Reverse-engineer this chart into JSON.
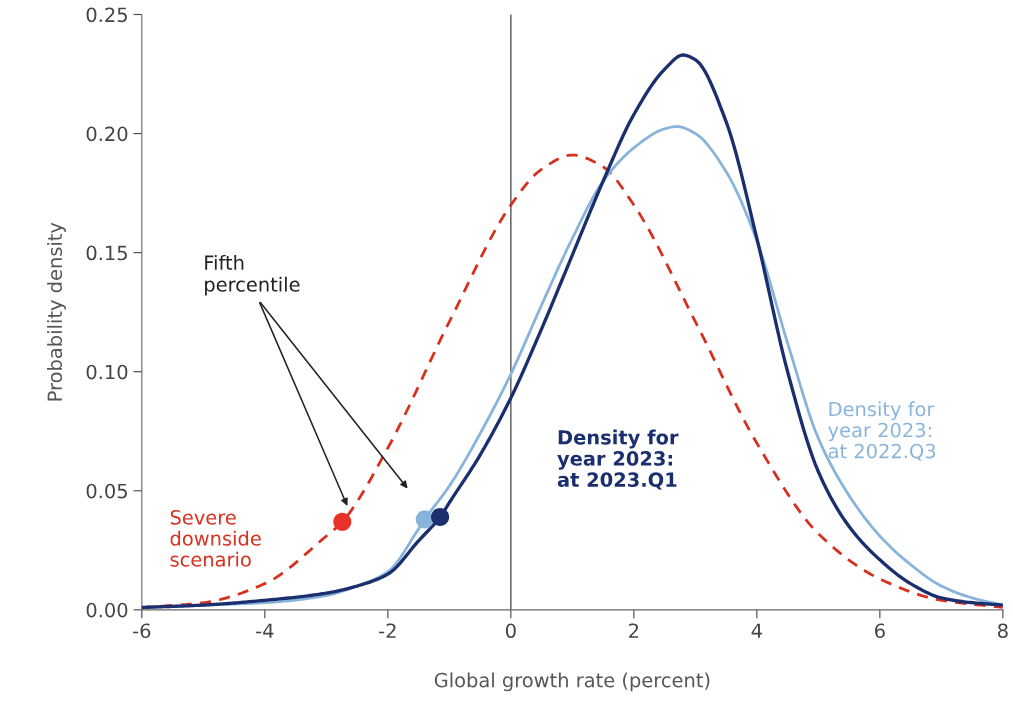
{
  "chart_data": {
    "type": "line",
    "xlabel": "Global growth rate (percent)",
    "ylabel": "Probability density",
    "xlim": [
      -6,
      8
    ],
    "ylim": [
      0,
      0.25
    ],
    "xticks": [
      -6,
      -4,
      -2,
      0,
      2,
      4,
      6,
      8
    ],
    "yticks": [
      {
        "value": 0,
        "label": "0.00"
      },
      {
        "value": 0.05,
        "label": "0.05"
      },
      {
        "value": 0.1,
        "label": "0.10"
      },
      {
        "value": 0.15,
        "label": "0.15"
      },
      {
        "value": 0.2,
        "label": "0.20"
      },
      {
        "value": 0.25,
        "label": "0.25"
      }
    ],
    "grid": false,
    "legend": false,
    "series": [
      {
        "name": "Severe downside scenario",
        "color": "#d7301f",
        "line_style": "dashed",
        "x": [
          -6,
          -5,
          -4,
          -3,
          -2.74,
          -2,
          -1,
          0,
          0.5,
          1,
          1.5,
          2,
          3,
          4,
          5,
          6,
          7,
          8
        ],
        "values": [
          0.001,
          0.003,
          0.011,
          0.031,
          0.037,
          0.068,
          0.121,
          0.17,
          0.185,
          0.191,
          0.186,
          0.17,
          0.121,
          0.07,
          0.032,
          0.013,
          0.004,
          0.001
        ]
      },
      {
        "name": "Density for year 2023: at 2022.Q3",
        "color": "#88b4dc",
        "line_style": "solid",
        "x": [
          -6,
          -5,
          -4,
          -3,
          -2.5,
          -2,
          -1.5,
          -1.4,
          -1,
          -0.5,
          0,
          0.5,
          1,
          1.5,
          2,
          2.5,
          2.7,
          3,
          3.5,
          4,
          4.5,
          5,
          5.5,
          6,
          6.5,
          7,
          7.5,
          8
        ],
        "values": [
          0.001,
          0.002,
          0.003,
          0.006,
          0.01,
          0.016,
          0.034,
          0.038,
          0.052,
          0.074,
          0.099,
          0.128,
          0.156,
          0.18,
          0.194,
          0.202,
          0.203,
          0.2,
          0.184,
          0.155,
          0.112,
          0.072,
          0.048,
          0.031,
          0.019,
          0.01,
          0.005,
          0.002
        ]
      },
      {
        "name": "Density for year 2023: at 2023.Q1",
        "color": "#1b2f6e",
        "line_style": "solid",
        "x": [
          -6,
          -5,
          -4,
          -3,
          -2.5,
          -2,
          -1.5,
          -1.15,
          -1,
          -0.5,
          0,
          0.5,
          1,
          1.5,
          2,
          2.5,
          2.8,
          3,
          3.5,
          4,
          4.5,
          5,
          5.5,
          6,
          6.5,
          7,
          7.5,
          8
        ],
        "values": [
          0.001,
          0.002,
          0.004,
          0.007,
          0.01,
          0.015,
          0.029,
          0.039,
          0.045,
          0.065,
          0.089,
          0.118,
          0.149,
          0.18,
          0.208,
          0.227,
          0.233,
          0.231,
          0.205,
          0.156,
          0.1,
          0.058,
          0.035,
          0.021,
          0.011,
          0.005,
          0.003,
          0.002
        ]
      },
      {
        "type": "scatter",
        "marker": "circle",
        "x": [
          -2.74,
          -1.4,
          -1.15
        ],
        "values": [
          0.037,
          0.038,
          0.039
        ],
        "colors": [
          "#e8322a",
          "#88b4dc",
          "#1b2f6e"
        ]
      }
    ],
    "ref_lines": [
      {
        "axis": "x",
        "value": 0,
        "color": "#555555",
        "line_style": "solid"
      }
    ],
    "annotations": [
      "Fifth\npercentile"
    ]
  }
}
